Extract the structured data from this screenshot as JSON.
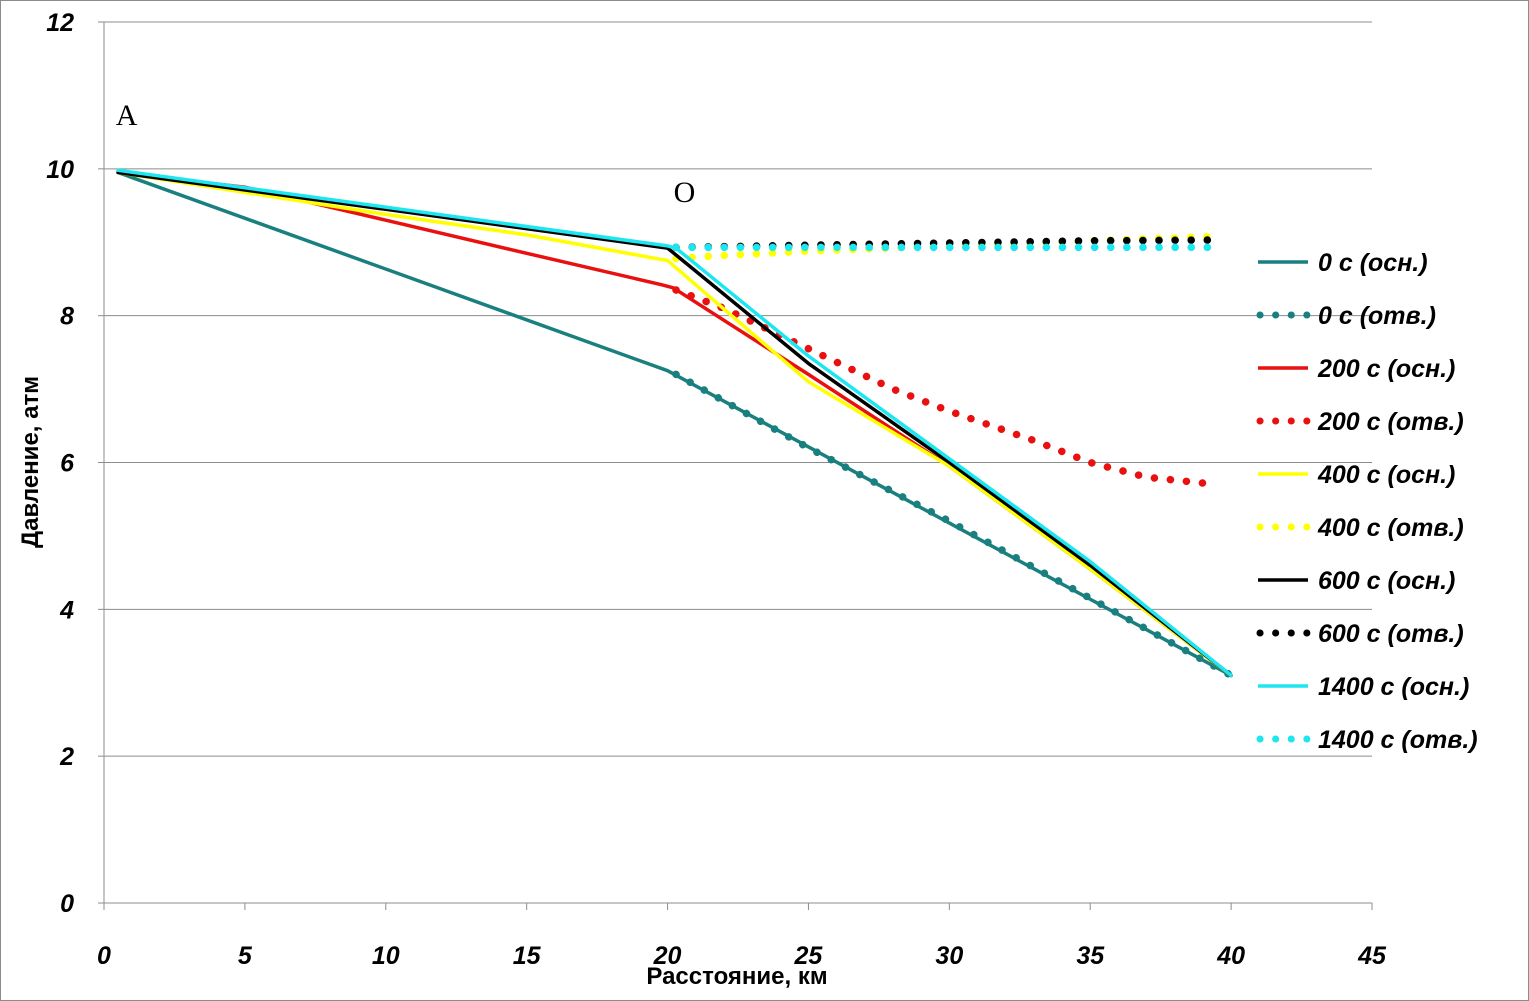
{
  "chart_data": {
    "type": "line",
    "title": "",
    "xlabel": "Расстояние, км",
    "ylabel": "Давление, атм",
    "xlim": [
      0,
      45
    ],
    "ylim": [
      0,
      12
    ],
    "xticks": [
      "0",
      "5",
      "10",
      "15",
      "20",
      "25",
      "30",
      "35",
      "40",
      "45"
    ],
    "yticks": [
      "0",
      "2",
      "4",
      "6",
      "8",
      "10",
      "12"
    ],
    "grid": "horizontal",
    "legend_position": "right",
    "annotations": [
      {
        "text": "A",
        "x": 0.8,
        "y": 10.6
      },
      {
        "text": "O",
        "x": 20.6,
        "y": 9.55
      }
    ],
    "series": [
      {
        "name": "0 с (осн.)",
        "color": "#1a7f7f",
        "style": "solid",
        "points": [
          [
            0.5,
            9.95
          ],
          [
            20,
            7.25
          ],
          [
            40,
            3.1
          ]
        ]
      },
      {
        "name": "0 с (отв.)",
        "color": "#1a7f7f",
        "style": "dotted",
        "points": [
          [
            20.3,
            7.2
          ],
          [
            25,
            6.2
          ],
          [
            30,
            5.2
          ],
          [
            35,
            4.15
          ],
          [
            40,
            3.1
          ]
        ]
      },
      {
        "name": "200 с (осн.)",
        "color": "#e8110f",
        "style": "solid",
        "points": [
          [
            0.5,
            9.95
          ],
          [
            5,
            9.75
          ],
          [
            10,
            9.3
          ],
          [
            15,
            8.85
          ],
          [
            19.8,
            8.42
          ],
          [
            20.2,
            8.38
          ],
          [
            25,
            7.2
          ],
          [
            30,
            5.95
          ],
          [
            35,
            4.55
          ],
          [
            40,
            3.1
          ]
        ]
      },
      {
        "name": "200 с (отв.)",
        "color": "#e8110f",
        "style": "dotted",
        "points": [
          [
            20.3,
            8.35
          ],
          [
            22,
            8.1
          ],
          [
            25,
            7.55
          ],
          [
            28,
            7.0
          ],
          [
            30,
            6.7
          ],
          [
            33,
            6.3
          ],
          [
            35,
            6.0
          ],
          [
            37,
            5.8
          ],
          [
            39.5,
            5.7
          ]
        ]
      },
      {
        "name": "400 с (осн.)",
        "color": "#ffff00",
        "style": "solid",
        "points": [
          [
            0.5,
            9.95
          ],
          [
            10,
            9.38
          ],
          [
            15,
            9.1
          ],
          [
            20,
            8.75
          ],
          [
            25,
            7.1
          ],
          [
            30,
            5.95
          ],
          [
            35,
            4.55
          ],
          [
            40,
            3.1
          ]
        ]
      },
      {
        "name": "400 с (отв.)",
        "color": "#ffff00",
        "style": "dotted",
        "points": [
          [
            20.3,
            8.78
          ],
          [
            22,
            8.82
          ],
          [
            25,
            8.88
          ],
          [
            30,
            8.95
          ],
          [
            35,
            9.02
          ],
          [
            39.5,
            9.08
          ]
        ]
      },
      {
        "name": "600 с (осн.)",
        "color": "#000000",
        "style": "solid",
        "points": [
          [
            0.5,
            9.95
          ],
          [
            20,
            8.92
          ],
          [
            25,
            7.35
          ],
          [
            30,
            6.0
          ],
          [
            35,
            4.6
          ],
          [
            40,
            3.1
          ]
        ]
      },
      {
        "name": "600 с (отв.)",
        "color": "#000000",
        "style": "dotted",
        "points": [
          [
            20.3,
            8.93
          ],
          [
            25,
            8.96
          ],
          [
            30,
            8.99
          ],
          [
            35,
            9.02
          ],
          [
            39.5,
            9.03
          ]
        ]
      },
      {
        "name": "1400 с (осн.)",
        "color": "#1ee6f0",
        "style": "solid",
        "points": [
          [
            0.5,
            9.98
          ],
          [
            20,
            8.95
          ],
          [
            20.3,
            8.92
          ],
          [
            25,
            7.45
          ],
          [
            30,
            6.05
          ],
          [
            35,
            4.65
          ],
          [
            40,
            3.1
          ]
        ]
      },
      {
        "name": "1400 с (отв.)",
        "color": "#1ee6f0",
        "style": "dotted",
        "points": [
          [
            20.3,
            8.93
          ],
          [
            25,
            8.93
          ],
          [
            30,
            8.93
          ],
          [
            35,
            8.93
          ],
          [
            39.5,
            8.93
          ]
        ]
      }
    ]
  }
}
